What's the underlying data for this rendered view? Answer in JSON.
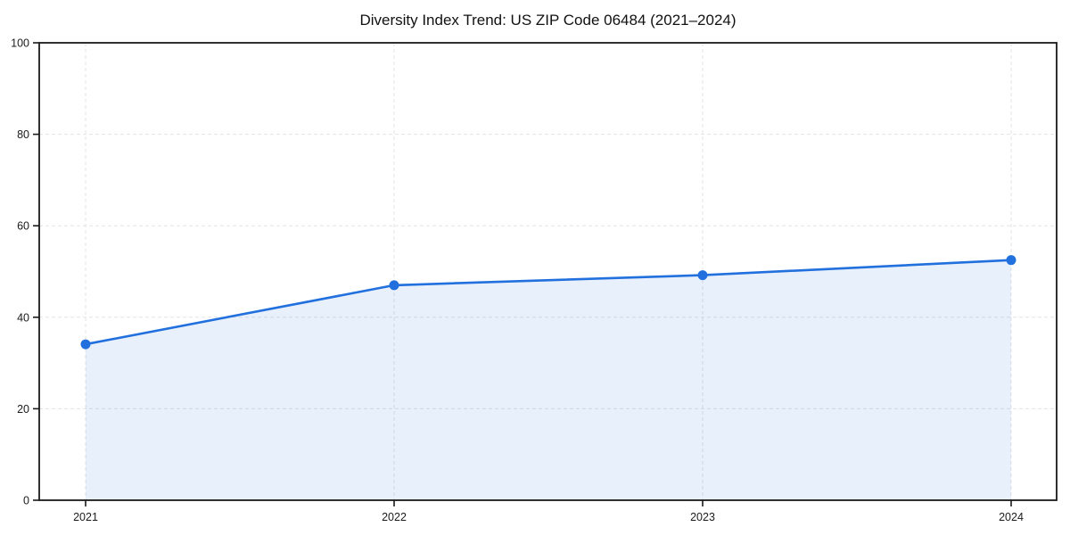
{
  "page": {
    "background": "#ffffff"
  },
  "chart_data": {
    "type": "line",
    "title": "Diversity Index Trend: US ZIP Code 06484 (2021–2024)",
    "categories": [
      "2021",
      "2022",
      "2023",
      "2024"
    ],
    "series": [
      {
        "name": "Diversity Index",
        "values": [
          34.1,
          47.0,
          49.2,
          52.5
        ]
      }
    ],
    "area_fill": true,
    "xlabel": "",
    "ylabel": "",
    "ylim": [
      0,
      100
    ],
    "yticks": [
      0,
      20,
      40,
      60,
      80,
      100
    ],
    "grid": true,
    "grid_style": "dashed",
    "legend": "none",
    "marker": "circle",
    "colors": {
      "line": "#2270dd",
      "fill": "#2270dd",
      "fill_opacity": 0.1,
      "grid": "#e3e3e3",
      "axis": "#1a1a1a",
      "tick_label": "#1a1a1a",
      "title": "#111111"
    }
  }
}
